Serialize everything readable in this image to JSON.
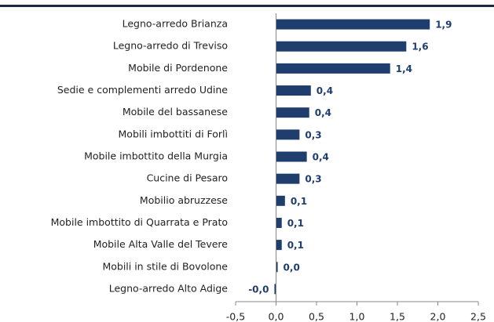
{
  "chart_data": {
    "type": "bar",
    "orientation": "horizontal",
    "color": "#1f3d6d",
    "categories": [
      "Legno-arredo Brianza",
      "Legno-arredo di Treviso",
      "Mobile di Pordenone",
      "Sedie e complementi arredo Udine",
      "Mobile del bassanese",
      "Mobili imbottiti di Forlì",
      "Mobile imbottito della Murgia",
      "Cucine di Pesaro",
      "Mobilio abruzzese",
      "Mobile imbottito di Quarrata e Prato",
      "Mobile Alta Valle del Tevere",
      "Mobili in stile di Bovolone",
      "Legno-arredo Alto Adige"
    ],
    "values": [
      1.9,
      1.61,
      1.41,
      0.43,
      0.41,
      0.29,
      0.38,
      0.29,
      0.11,
      0.07,
      0.07,
      0.02,
      -0.02
    ],
    "value_labels": [
      "1,9",
      "1,6",
      "1,4",
      "0,4",
      "0,4",
      "0,3",
      "0,4",
      "0,3",
      "0,1",
      "0,1",
      "0,1",
      "0,0",
      "-0,0"
    ],
    "xlim": [
      -0.5,
      2.5
    ],
    "xticks": [
      {
        "value": -0.5,
        "label": "-0,5"
      },
      {
        "value": 0,
        "label": "0,0"
      },
      {
        "value": 0.5,
        "label": "0,5"
      },
      {
        "value": 1,
        "label": "1,0"
      },
      {
        "value": 1.5,
        "label": "1,5"
      },
      {
        "value": 2,
        "label": "2,0"
      },
      {
        "value": 2.5,
        "label": "2,5"
      }
    ]
  }
}
